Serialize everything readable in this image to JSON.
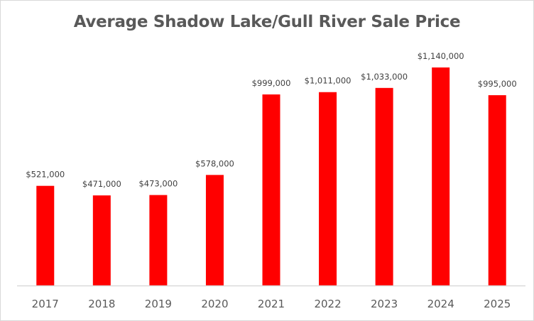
{
  "chart_data": {
    "type": "bar",
    "title": "Average Shadow Lake/Gull River Sale Price",
    "xlabel": "",
    "ylabel": "",
    "categories": [
      "2017",
      "2018",
      "2019",
      "2020",
      "2021",
      "2022",
      "2023",
      "2024",
      "2025"
    ],
    "values": [
      521000,
      471000,
      473000,
      578000,
      999000,
      1011000,
      1033000,
      1140000,
      995000
    ],
    "data_labels": [
      "$521,000",
      "$471,000",
      "$473,000",
      "$578,000",
      "$999,000",
      "$1,011,000",
      "$1,033,000",
      "$1,140,000",
      "$995,000"
    ],
    "ylim": [
      0,
      1140000
    ],
    "grid": false,
    "legend": "none",
    "bar_color": "#FF0000",
    "axis_color": "#D9D9D9"
  }
}
